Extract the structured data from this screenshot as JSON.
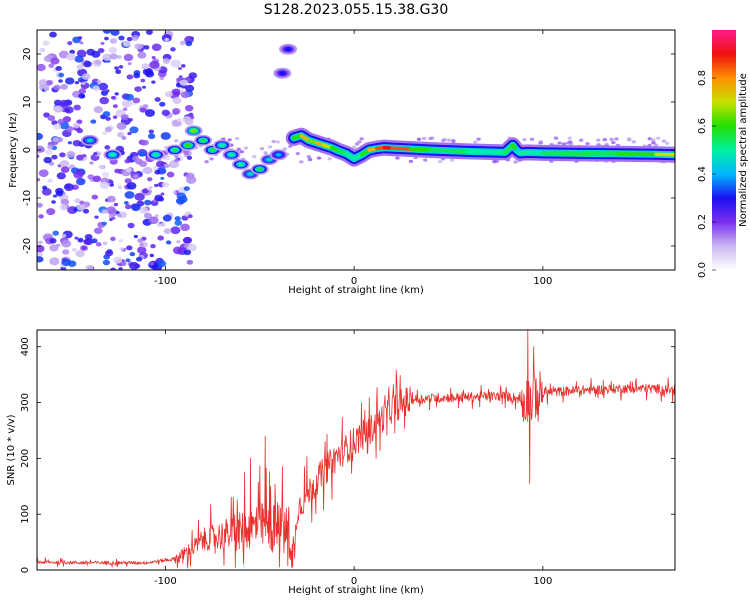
{
  "figure": {
    "title": "S128.2023.055.15.38.G30"
  },
  "chart_data": [
    {
      "type": "heatmap",
      "name": "spectrogram",
      "xlabel": "Height of straight line (km)",
      "ylabel": "Frequency (Hz)",
      "xlim": [
        -168,
        170
      ],
      "ylim": [
        -25,
        25
      ],
      "xticks": [
        -100,
        0,
        100
      ],
      "yticks": [
        -20,
        -10,
        0,
        10,
        20
      ],
      "grid": false,
      "colorbar": {
        "label": "Normalized spectral amplitude",
        "range": [
          0,
          1
        ],
        "ticks": [
          "0.0",
          "0.2",
          "0.4",
          "0.6",
          "0.8"
        ],
        "colors": [
          "#ffffff",
          "#c9b6f0",
          "#7a2ff0",
          "#1a10f0",
          "#00b8ff",
          "#00f0a0",
          "#22e000",
          "#c8e000",
          "#ff9000",
          "#f01010",
          "#ff1a8c"
        ]
      },
      "ridge": {
        "x": [
          -32,
          -28,
          -24,
          -20,
          -16,
          -12,
          -8,
          -4,
          0,
          4,
          8,
          12,
          16,
          20,
          30,
          40,
          60,
          80,
          84,
          86,
          88,
          92,
          100,
          120,
          140,
          160,
          170
        ],
        "y": [
          2.5,
          3.0,
          2.0,
          1.5,
          1.0,
          0.5,
          -0.2,
          -0.8,
          -1.8,
          -1.0,
          0.0,
          0.3,
          0.5,
          0.4,
          0.2,
          0.0,
          -0.3,
          -0.5,
          1.0,
          0.0,
          -0.6,
          -0.5,
          -0.6,
          -0.7,
          -0.8,
          -0.9,
          -1.0
        ],
        "amplitude": [
          0.6,
          0.75,
          0.65,
          0.75,
          0.7,
          0.6,
          0.55,
          0.5,
          0.5,
          0.6,
          0.75,
          0.85,
          0.9,
          0.85,
          0.6,
          0.55,
          0.5,
          0.55,
          0.6,
          0.45,
          0.5,
          0.5,
          0.55,
          0.55,
          0.6,
          0.7,
          0.75
        ]
      },
      "noise_region": {
        "x_range": [
          -168,
          -95
        ],
        "amplitude_max": 0.3
      },
      "clusters": [
        {
          "x": -140,
          "y": 2,
          "amp": 0.45
        },
        {
          "x": -128,
          "y": -1,
          "amp": 0.5
        },
        {
          "x": -105,
          "y": -1,
          "amp": 0.5
        },
        {
          "x": -95,
          "y": 0,
          "amp": 0.55
        },
        {
          "x": -88,
          "y": 1,
          "amp": 0.6
        },
        {
          "x": -85,
          "y": 4,
          "amp": 0.65
        },
        {
          "x": -80,
          "y": 2,
          "amp": 0.55
        },
        {
          "x": -75,
          "y": 0,
          "amp": 0.55
        },
        {
          "x": -70,
          "y": 1,
          "amp": 0.5
        },
        {
          "x": -65,
          "y": -1,
          "amp": 0.5
        },
        {
          "x": -60,
          "y": -3,
          "amp": 0.5
        },
        {
          "x": -55,
          "y": -5,
          "amp": 0.45
        },
        {
          "x": -50,
          "y": -4,
          "amp": 0.55
        },
        {
          "x": -45,
          "y": -2,
          "amp": 0.45
        },
        {
          "x": -40,
          "y": -1,
          "amp": 0.4
        },
        {
          "x": -38,
          "y": 16,
          "amp": 0.3
        },
        {
          "x": -35,
          "y": 21,
          "amp": 0.3
        }
      ]
    },
    {
      "type": "line",
      "name": "snr",
      "xlabel": "Height of straight line (km)",
      "ylabel": "SNR (10 * v/v)",
      "xlim": [
        -168,
        170
      ],
      "ylim": [
        0,
        430
      ],
      "xticks": [
        -100,
        0,
        100
      ],
      "yticks": [
        0,
        100,
        200,
        300,
        400
      ],
      "grid": false,
      "color": "#e8302c",
      "trend": {
        "x": [
          -168,
          -140,
          -110,
          -95,
          -90,
          -85,
          -80,
          -70,
          -60,
          -50,
          -40,
          -34,
          -32,
          -30,
          -20,
          -10,
          0,
          10,
          20,
          30,
          40,
          60,
          80,
          90,
          100,
          120,
          140,
          160,
          170
        ],
        "y": [
          14,
          13,
          13,
          20,
          28,
          40,
          55,
          62,
          70,
          80,
          72,
          65,
          20,
          110,
          160,
          200,
          230,
          255,
          290,
          305,
          308,
          310,
          312,
          305,
          318,
          322,
          325,
          325,
          322
        ]
      },
      "spikes": [
        {
          "x": -47,
          "y": 240
        },
        {
          "x": -55,
          "y": 200
        },
        {
          "x": -58,
          "y": 175
        },
        {
          "x": -38,
          "y": 185
        },
        {
          "x": 12,
          "y": 300
        },
        {
          "x": 17,
          "y": 290
        },
        {
          "x": 92,
          "y": 430
        },
        {
          "x": 93,
          "y": 155
        },
        {
          "x": 95,
          "y": 400
        }
      ]
    }
  ]
}
